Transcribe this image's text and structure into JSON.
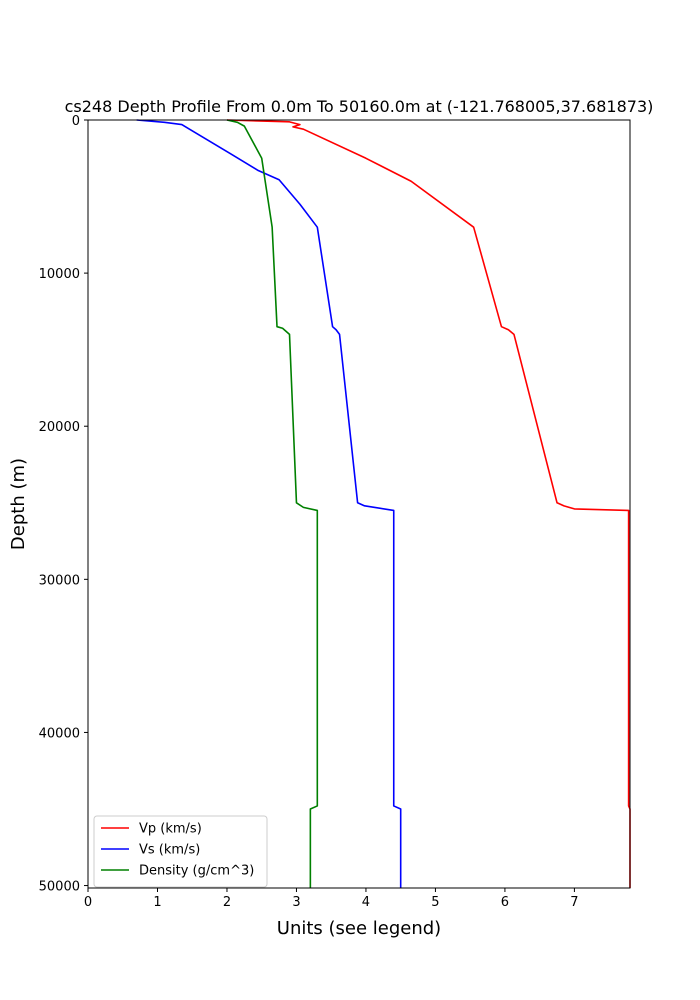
{
  "chart_data": {
    "type": "line",
    "title": "cs248 Depth Profile From 0.0m To 50160.0m at (-121.768005,37.681873)",
    "xlabel": "Units (see legend)",
    "ylabel": "Depth (m)",
    "xlim": [
      0,
      7.8
    ],
    "ylim": [
      50160,
      0
    ],
    "y_inverted": true,
    "xticks": [
      0,
      1,
      2,
      3,
      4,
      5,
      6,
      7
    ],
    "yticks": [
      0,
      10000,
      20000,
      30000,
      40000,
      50000
    ],
    "grid": false,
    "legend_position": "lower-left",
    "series": [
      {
        "name": "Vp (km/s)",
        "color": "#ff0000",
        "points": [
          [
            2.0,
            0
          ],
          [
            2.9,
            120
          ],
          [
            3.05,
            300
          ],
          [
            2.95,
            450
          ],
          [
            3.1,
            600
          ],
          [
            4.0,
            2500
          ],
          [
            4.65,
            4000
          ],
          [
            5.55,
            7000
          ],
          [
            5.95,
            13500
          ],
          [
            6.05,
            13700
          ],
          [
            6.13,
            14000
          ],
          [
            6.75,
            25000
          ],
          [
            6.85,
            25200
          ],
          [
            7.0,
            25400
          ],
          [
            7.78,
            25500
          ],
          [
            7.78,
            44800
          ],
          [
            7.8,
            45000
          ],
          [
            7.8,
            50160
          ]
        ]
      },
      {
        "name": "Vs (km/s)",
        "color": "#0000ff",
        "points": [
          [
            0.7,
            0
          ],
          [
            1.1,
            150
          ],
          [
            1.35,
            300
          ],
          [
            2.05,
            2200
          ],
          [
            2.45,
            3300
          ],
          [
            2.75,
            3900
          ],
          [
            3.05,
            5500
          ],
          [
            3.3,
            7000
          ],
          [
            3.52,
            13500
          ],
          [
            3.57,
            13700
          ],
          [
            3.62,
            14000
          ],
          [
            3.88,
            25000
          ],
          [
            3.98,
            25200
          ],
          [
            4.4,
            25500
          ],
          [
            4.4,
            44800
          ],
          [
            4.5,
            45000
          ],
          [
            4.5,
            50160
          ]
        ]
      },
      {
        "name": "Density (g/cm^3)",
        "color": "#008000",
        "points": [
          [
            2.0,
            0
          ],
          [
            2.15,
            150
          ],
          [
            2.25,
            400
          ],
          [
            2.5,
            2500
          ],
          [
            2.55,
            4000
          ],
          [
            2.65,
            7000
          ],
          [
            2.72,
            13500
          ],
          [
            2.8,
            13600
          ],
          [
            2.9,
            14000
          ],
          [
            3.0,
            25000
          ],
          [
            3.1,
            25300
          ],
          [
            3.3,
            25500
          ],
          [
            3.3,
            44800
          ],
          [
            3.2,
            45000
          ],
          [
            3.2,
            50160
          ]
        ]
      }
    ]
  }
}
